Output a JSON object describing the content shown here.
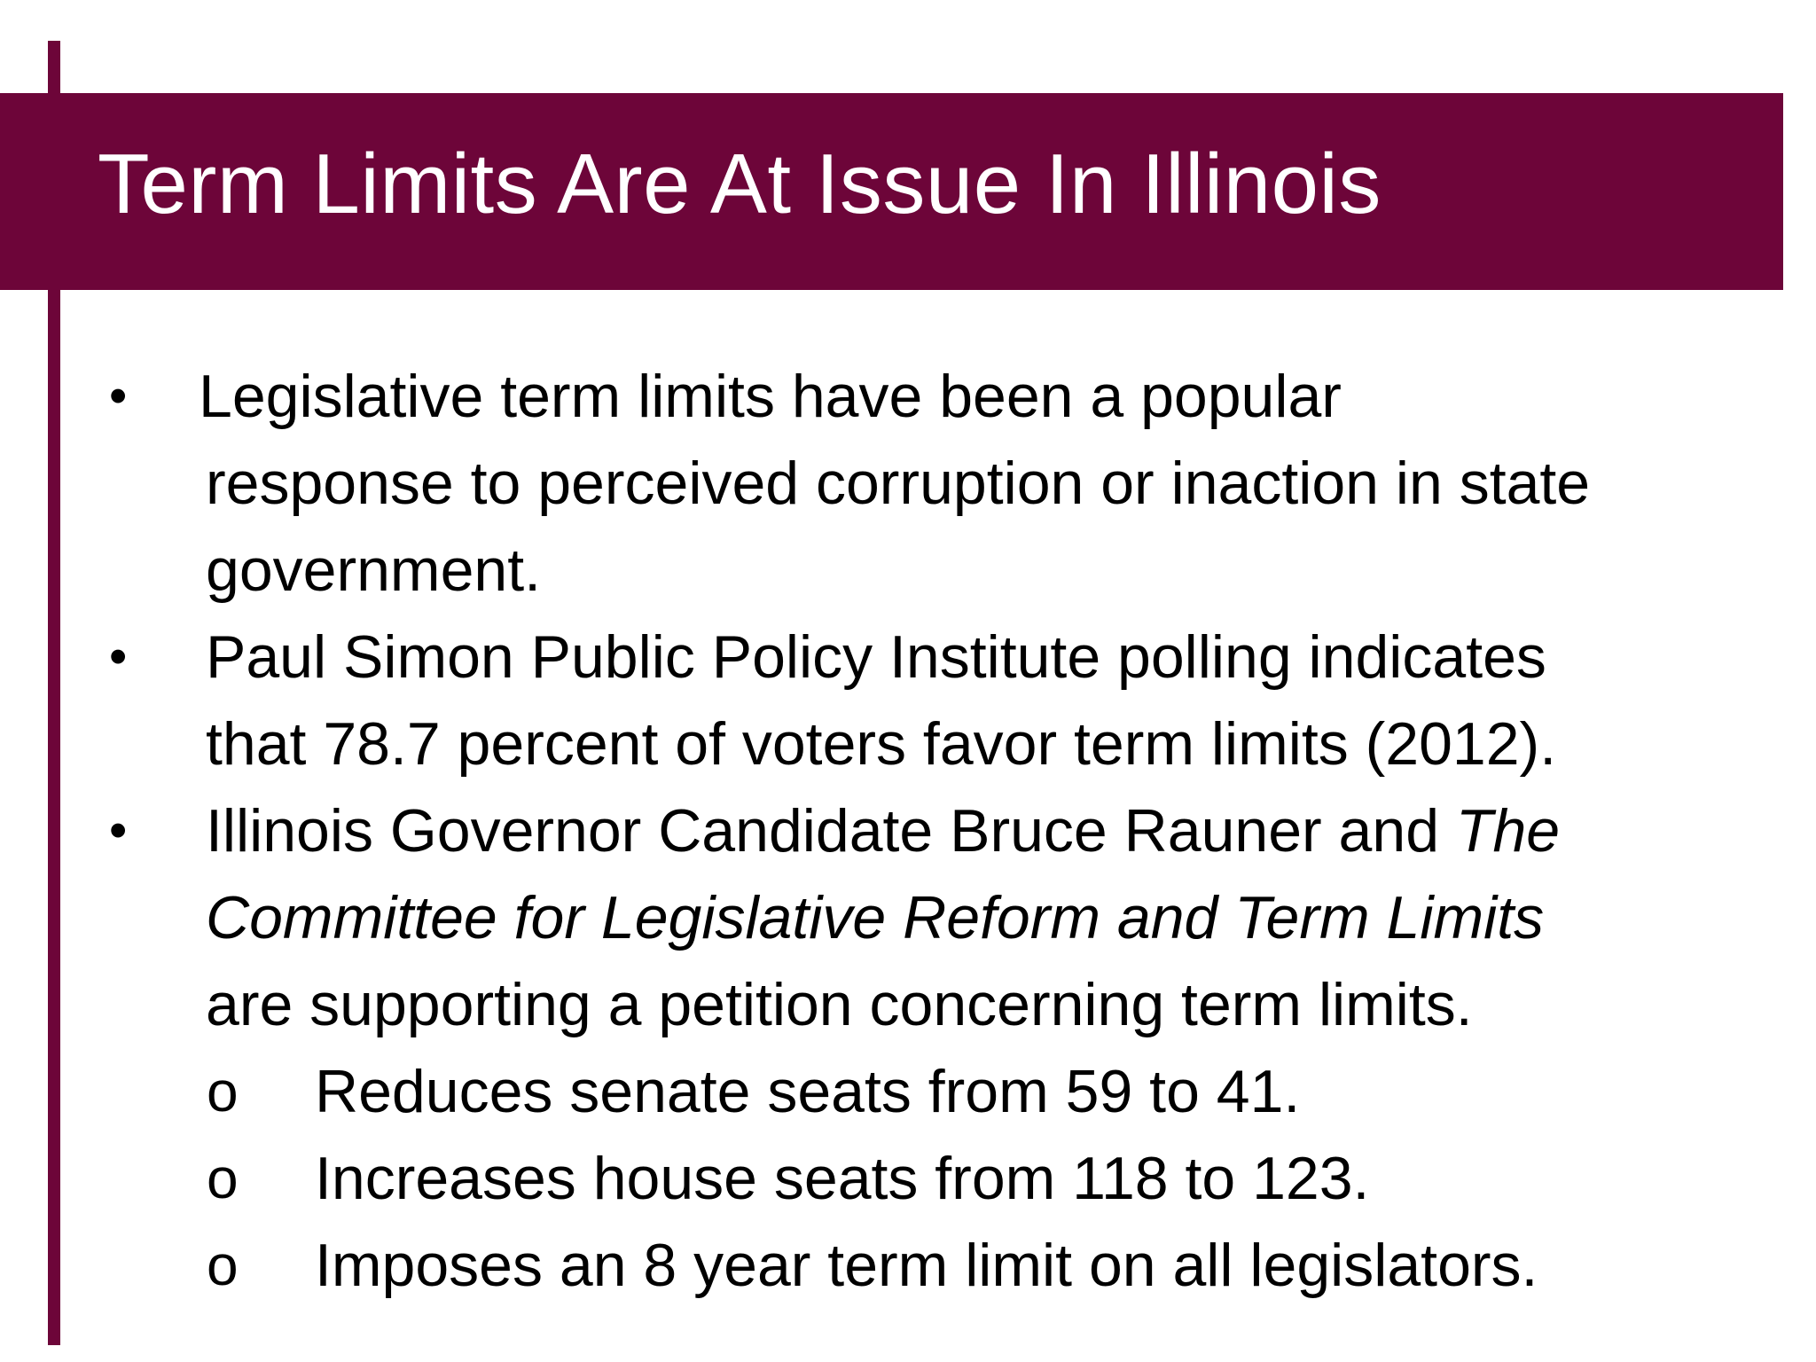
{
  "slide": {
    "title": "Term Limits Are At Issue In Illinois",
    "accent_color": "#6d0539",
    "bullets": [
      {
        "marker": "•",
        "lines": [
          "Legislative term limits have been a popular",
          "response to perceived corruption or inaction in state",
          "government."
        ]
      },
      {
        "marker": "•",
        "lines": [
          "Paul Simon Public Policy Institute polling indicates",
          "that 78.7 percent of voters favor term limits (2012)."
        ]
      },
      {
        "marker": "•",
        "line1_prefix": "Illinois Governor Candidate Bruce Rauner and ",
        "line1_italic": "The",
        "line2_italic": "Committee for Legislative Reform and Term Limits",
        "line3": "are supporting a petition concerning term limits.",
        "sub_items": [
          {
            "marker": "o",
            "text": "Reduces senate seats from 59 to 41."
          },
          {
            "marker": "o",
            "text": "Increases house seats from 118 to 123."
          },
          {
            "marker": "o",
            "text": "Imposes an 8 year term limit on all legislators."
          }
        ]
      }
    ]
  }
}
